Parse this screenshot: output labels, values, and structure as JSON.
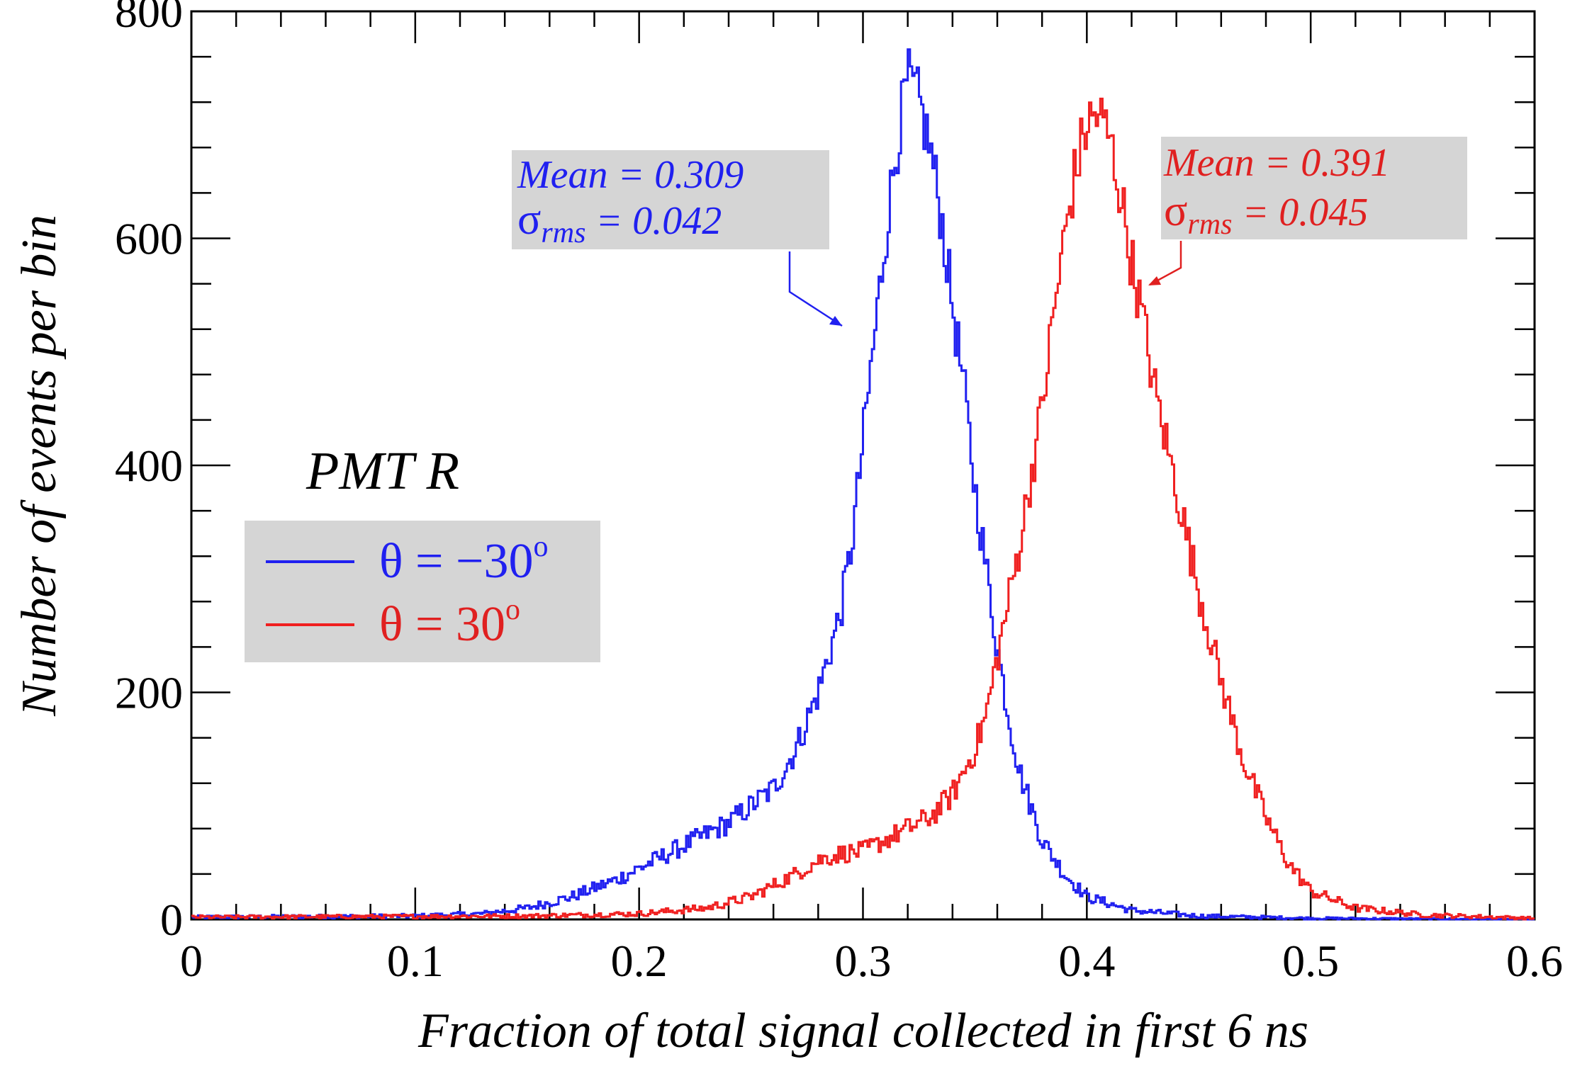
{
  "chart_data": {
    "type": "line",
    "title": "PMT R",
    "xlabel": "Fraction of total signal collected in first 6 ns",
    "ylabel": "Number of events per bin",
    "xlim": [
      0,
      0.6
    ],
    "ylim": [
      0,
      800
    ],
    "x_ticks": [
      "0",
      "0.1",
      "0.2",
      "0.3",
      "0.4",
      "0.5",
      "0.6"
    ],
    "y_ticks": [
      "0",
      "200",
      "400",
      "600",
      "800"
    ],
    "legend_position": "middle-left",
    "grid": false,
    "series": [
      {
        "name": "θ = −30°",
        "label_prefix": "θ = −30",
        "label_sup": "o",
        "color": "#2020f0",
        "mean_label": "Mean = 0.309",
        "sigma_symbol": "σ",
        "sigma_sub": "rms",
        "sigma_value": " = 0.042",
        "points": [
          [
            0.0,
            2
          ],
          [
            0.1,
            3
          ],
          [
            0.13,
            5
          ],
          [
            0.15,
            10
          ],
          [
            0.17,
            20
          ],
          [
            0.19,
            35
          ],
          [
            0.2,
            45
          ],
          [
            0.22,
            65
          ],
          [
            0.24,
            85
          ],
          [
            0.26,
            115
          ],
          [
            0.27,
            150
          ],
          [
            0.28,
            200
          ],
          [
            0.29,
            270
          ],
          [
            0.295,
            330
          ],
          [
            0.3,
            420
          ],
          [
            0.305,
            510
          ],
          [
            0.31,
            600
          ],
          [
            0.315,
            680
          ],
          [
            0.32,
            740
          ],
          [
            0.325,
            720
          ],
          [
            0.33,
            680
          ],
          [
            0.335,
            620
          ],
          [
            0.34,
            540
          ],
          [
            0.345,
            470
          ],
          [
            0.35,
            380
          ],
          [
            0.355,
            310
          ],
          [
            0.36,
            240
          ],
          [
            0.365,
            180
          ],
          [
            0.37,
            130
          ],
          [
            0.38,
            70
          ],
          [
            0.39,
            40
          ],
          [
            0.4,
            20
          ],
          [
            0.42,
            8
          ],
          [
            0.45,
            3
          ],
          [
            0.5,
            1
          ],
          [
            0.6,
            0
          ]
        ]
      },
      {
        "name": "θ = 30°",
        "label_prefix": "θ = 30",
        "label_sup": "o",
        "color": "#f02020",
        "mean_label": "Mean = 0.391",
        "sigma_symbol": "σ",
        "sigma_sub": "rms",
        "sigma_value": " = 0.045",
        "points": [
          [
            0.0,
            2
          ],
          [
            0.15,
            3
          ],
          [
            0.2,
            5
          ],
          [
            0.23,
            10
          ],
          [
            0.25,
            20
          ],
          [
            0.26,
            30
          ],
          [
            0.27,
            40
          ],
          [
            0.28,
            52
          ],
          [
            0.29,
            58
          ],
          [
            0.3,
            60
          ],
          [
            0.31,
            70
          ],
          [
            0.32,
            80
          ],
          [
            0.33,
            90
          ],
          [
            0.34,
            110
          ],
          [
            0.35,
            150
          ],
          [
            0.355,
            180
          ],
          [
            0.36,
            230
          ],
          [
            0.365,
            280
          ],
          [
            0.37,
            330
          ],
          [
            0.375,
            390
          ],
          [
            0.38,
            450
          ],
          [
            0.385,
            530
          ],
          [
            0.39,
            600
          ],
          [
            0.395,
            660
          ],
          [
            0.4,
            700
          ],
          [
            0.405,
            710
          ],
          [
            0.41,
            690
          ],
          [
            0.415,
            640
          ],
          [
            0.42,
            580
          ],
          [
            0.425,
            530
          ],
          [
            0.43,
            470
          ],
          [
            0.44,
            380
          ],
          [
            0.45,
            290
          ],
          [
            0.46,
            210
          ],
          [
            0.47,
            140
          ],
          [
            0.48,
            90
          ],
          [
            0.49,
            50
          ],
          [
            0.5,
            25
          ],
          [
            0.52,
            10
          ],
          [
            0.55,
            4
          ],
          [
            0.6,
            1
          ]
        ]
      }
    ]
  }
}
